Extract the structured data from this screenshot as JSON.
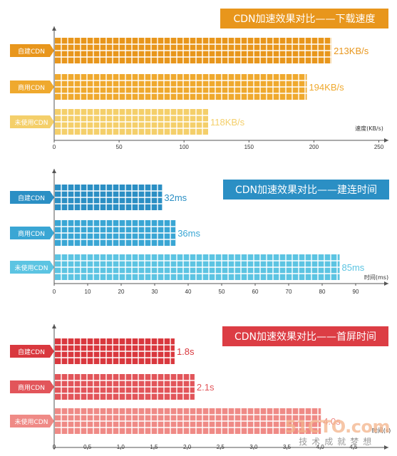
{
  "chart_data": [
    {
      "type": "bar",
      "title": "CDN加速效果对比——下载速度",
      "categories": [
        "自建CDN",
        "商用CDN",
        "未使用CDN"
      ],
      "values": [
        213,
        194,
        118
      ],
      "value_labels": [
        "213KB/s",
        "194KB/s",
        "118KB/s"
      ],
      "xlabel": "速度(KB/s)",
      "xticks": [
        "0",
        "50",
        "100",
        "150",
        "200",
        "250"
      ],
      "xlim": [
        0,
        250
      ],
      "colors": [
        "#e8961c",
        "#efa92e",
        "#f4cf6a"
      ],
      "title_color": "#e8961c"
    },
    {
      "type": "bar",
      "title": "CDN加速效果对比——建连时间",
      "categories": [
        "自建CDN",
        "商用CDN",
        "未使用CDN"
      ],
      "values": [
        32,
        36,
        85
      ],
      "value_labels": [
        "32ms",
        "36ms",
        "85ms"
      ],
      "xlabel": "时间(ms)",
      "xticks": [
        "0",
        "10",
        "20",
        "30",
        "40",
        "50",
        "60",
        "70",
        "80",
        "90"
      ],
      "xlim": [
        0,
        90
      ],
      "colors": [
        "#2b8fc4",
        "#3aa6d4",
        "#5cc4e2"
      ],
      "title_color": "#2b8fc4"
    },
    {
      "type": "bar",
      "title": "CDN加速效果对比——首屏时间",
      "categories": [
        "自建CDN",
        "商用CDN",
        "未使用CDN"
      ],
      "values": [
        1.8,
        2.1,
        4.0
      ],
      "value_labels": [
        "1.8s",
        "2.1s",
        "4.0s"
      ],
      "xlabel": "时间(s)",
      "xticks": [
        "0",
        "0.5",
        "1.0",
        "1.5",
        "2.0",
        "2.5",
        "3.0",
        "3.5",
        "4.0",
        "4.5"
      ],
      "xlim": [
        0,
        4.5
      ],
      "colors": [
        "#d9383e",
        "#e2555a",
        "#ef8a86"
      ],
      "title_color": "#dc3d44"
    }
  ],
  "watermark": {
    "main": "51CTO.com",
    "sub": "技术成就梦想"
  }
}
